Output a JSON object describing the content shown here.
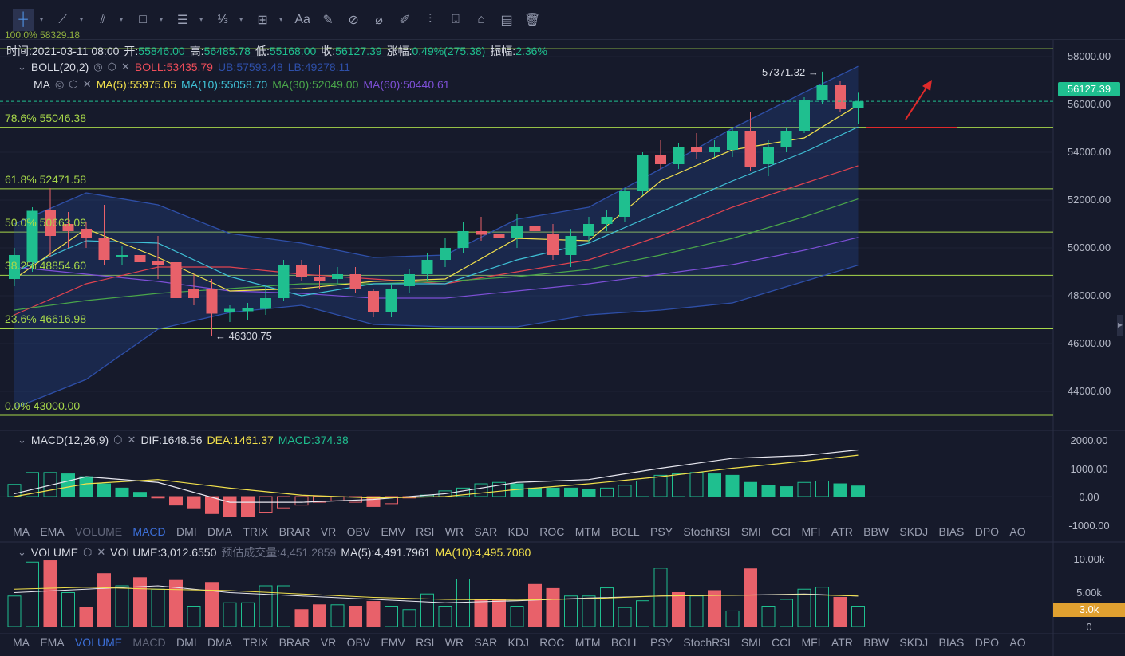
{
  "toolbar": {
    "tools": [
      {
        "name": "crosshair",
        "glyph": "┼",
        "caret": true,
        "active": true
      },
      {
        "name": "trend-line",
        "glyph": "⟋",
        "caret": true
      },
      {
        "name": "parallel-line",
        "glyph": "⫽",
        "caret": true
      },
      {
        "name": "rectangle",
        "glyph": "□",
        "caret": true
      },
      {
        "name": "fib-lines",
        "glyph": "☰",
        "caret": true
      },
      {
        "name": "fraction",
        "glyph": "⅓",
        "caret": true
      },
      {
        "name": "measure",
        "glyph": "⊞",
        "caret": true
      },
      {
        "name": "text",
        "glyph": "Aa"
      },
      {
        "name": "eraser",
        "glyph": "✎"
      },
      {
        "name": "link",
        "glyph": "⊘"
      },
      {
        "name": "ruler",
        "glyph": "⌀"
      },
      {
        "name": "brush",
        "glyph": "✐"
      },
      {
        "name": "candles",
        "glyph": "⫶"
      },
      {
        "name": "lock",
        "glyph": "⍗"
      },
      {
        "name": "bookmark",
        "glyph": "⌂"
      },
      {
        "name": "notes",
        "glyph": "▤"
      },
      {
        "name": "trash",
        "glyph": "🗑"
      }
    ]
  },
  "header": {
    "fib_top": "100.0% 58329.18",
    "time_label": "时间:",
    "time": "2021-03-11 08:00",
    "open_label": "开:",
    "open": "55846.00",
    "high_label": "高:",
    "high": "56485.78",
    "low_label": "低:",
    "low": "55168.00",
    "close_label": "收:",
    "close": "56127.39",
    "change_label": "涨幅:",
    "change": "0.49%(275.38)",
    "amp_label": "振幅:",
    "amp": "2.36%"
  },
  "boll": {
    "name": "BOLL(20,2)",
    "mid": "BOLL:53435.79",
    "ub": "UB:57593.48",
    "lb": "LB:49278.11"
  },
  "ma": {
    "name": "MA",
    "ma5": "MA(5):55975.05",
    "ma10": "MA(10):55058.70",
    "ma30": "MA(30):52049.00",
    "ma60": "MA(60):50440.61"
  },
  "fib_levels": [
    {
      "label": "78.6% 55046.38",
      "price": 55046.38
    },
    {
      "label": "61.8% 52471.58",
      "price": 52471.58
    },
    {
      "label": "50.0% 50663.09",
      "price": 50663.09
    },
    {
      "label": "38.2% 48854.60",
      "price": 48854.6
    },
    {
      "label": "23.6% 46616.98",
      "price": 46616.98
    },
    {
      "label": "0.0% 43000.00",
      "price": 43000
    }
  ],
  "fib_top_price": 58329.18,
  "price_axis": [
    "58000.00",
    "56000.00",
    "54000.00",
    "52000.00",
    "50000.00",
    "48000.00",
    "46000.00",
    "44000.00"
  ],
  "current_price": "56127.39",
  "annotations": {
    "high": "57371.32 →",
    "low": "← 46300.75"
  },
  "macd": {
    "name": "MACD(12,26,9)",
    "dif": "DIF:1648.56",
    "dea": "DEA:1461.37",
    "macd": "MACD:374.38",
    "axis": [
      "2000.00",
      "1000.00",
      "0.00",
      "-1000.00"
    ]
  },
  "volume": {
    "name": "VOLUME",
    "value": "VOLUME:3,012.6550",
    "est": "预估成交量:4,451.2859",
    "ma5": "MA(5):4,491.7961",
    "ma10": "MA(10):4,495.7080",
    "axis": [
      "10.00k",
      "5.00k",
      "0"
    ],
    "current": "3.0k"
  },
  "indicator_tabs": [
    "MA",
    "EMA",
    "VOLUME",
    "MACD",
    "DMI",
    "DMA",
    "TRIX",
    "BRAR",
    "VR",
    "OBV",
    "EMV",
    "RSI",
    "WR",
    "SAR",
    "KDJ",
    "ROC",
    "MTM",
    "BOLL",
    "PSY",
    "StochRSI",
    "SMI",
    "CCI",
    "MFI",
    "ATR",
    "BBW",
    "SKDJ",
    "BIAS",
    "DPO",
    "AO"
  ],
  "colors": {
    "up": "#1fbf8f",
    "down": "#e8616a",
    "ma5": "#f2e14c",
    "ma10": "#3fc1d6",
    "ma30": "#4aa64a",
    "ma60": "#7d4fd6",
    "boll": "#e0434f",
    "band": "#2e4fa8",
    "fib": "#a8d84a"
  },
  "chart_data": {
    "type": "candlestick",
    "ohlc": [
      [
        48700,
        50000,
        48400,
        49700
      ],
      [
        49400,
        51700,
        49000,
        51550
      ],
      [
        51600,
        52500,
        49600,
        50500
      ],
      [
        51000,
        51500,
        50000,
        50700
      ],
      [
        50800,
        51100,
        50000,
        50400
      ],
      [
        50400,
        51800,
        49300,
        49500
      ],
      [
        49600,
        50100,
        49300,
        49700
      ],
      [
        49700,
        50700,
        48600,
        49400
      ],
      [
        49450,
        50500,
        48700,
        49300
      ],
      [
        49400,
        50300,
        47700,
        47900
      ],
      [
        48300,
        48900,
        47600,
        47900
      ],
      [
        48300,
        48700,
        46300.75,
        47250
      ],
      [
        47300,
        47600,
        46900,
        47450
      ],
      [
        47350,
        47700,
        47000,
        47500
      ],
      [
        47450,
        48400,
        47200,
        47900
      ],
      [
        47900,
        49500,
        47800,
        49300
      ],
      [
        49300,
        49500,
        48600,
        48800
      ],
      [
        48800,
        49300,
        48300,
        48600
      ],
      [
        48700,
        49200,
        48500,
        48900
      ],
      [
        48900,
        49200,
        48100,
        48300
      ],
      [
        48200,
        48300,
        47100,
        47300
      ],
      [
        47300,
        48500,
        47100,
        48300
      ],
      [
        48400,
        49100,
        48100,
        48900
      ],
      [
        48900,
        49800,
        48600,
        49500
      ],
      [
        49500,
        50400,
        49200,
        50000
      ],
      [
        50000,
        51100,
        49800,
        50700
      ],
      [
        50700,
        51300,
        50300,
        50550
      ],
      [
        50600,
        51000,
        50100,
        50400
      ],
      [
        50400,
        51400,
        50000,
        50900
      ],
      [
        50900,
        51900,
        50300,
        50700
      ],
      [
        50600,
        51000,
        49500,
        49700
      ],
      [
        49700,
        50800,
        49200,
        50500
      ],
      [
        50500,
        51300,
        50200,
        51000
      ],
      [
        51000,
        51600,
        50700,
        51300
      ],
      [
        51300,
        52500,
        51100,
        52400
      ],
      [
        52400,
        54000,
        52200,
        53900
      ],
      [
        53900,
        54500,
        53300,
        53500
      ],
      [
        53500,
        54400,
        53300,
        54200
      ],
      [
        54200,
        54800,
        53700,
        54000
      ],
      [
        54000,
        54500,
        53800,
        54200
      ],
      [
        54100,
        55000,
        53800,
        54900
      ],
      [
        54900,
        55700,
        53200,
        53400
      ],
      [
        53500,
        54500,
        53000,
        54200
      ],
      [
        54200,
        55000,
        54000,
        54900
      ],
      [
        54900,
        56300,
        54800,
        56200
      ],
      [
        56200,
        57371.32,
        56000,
        56800
      ],
      [
        56800,
        57000,
        55700,
        55800
      ],
      [
        55846,
        56485.78,
        55168,
        56127.39
      ]
    ],
    "line_index": [
      0,
      4,
      8,
      12,
      16,
      20,
      24,
      28,
      32,
      36,
      40,
      44,
      47
    ],
    "lines": {
      "ma5": [
        48700,
        50800,
        49600,
        48200,
        48300,
        48600,
        48700,
        50400,
        50300,
        52800,
        54100,
        54600,
        55975
      ],
      "ma10": [
        49000,
        50300,
        50200,
        48800,
        48000,
        48500,
        48500,
        49500,
        50200,
        51500,
        52800,
        54000,
        55058
      ],
      "ma30": [
        47400,
        47800,
        48100,
        48300,
        48500,
        48500,
        48600,
        48800,
        49100,
        49700,
        50400,
        51300,
        52049
      ],
      "ma60": [
        49200,
        48900,
        48600,
        48200,
        48100,
        47900,
        47900,
        48200,
        48500,
        48900,
        49300,
        49900,
        50440
      ],
      "boll": [
        47200,
        48500,
        49200,
        49200,
        48900,
        48700,
        48500,
        49000,
        49500,
        50500,
        51700,
        52700,
        53435
      ],
      "ub": [
        51000,
        52300,
        51800,
        50600,
        50200,
        49600,
        49700,
        51200,
        51700,
        53300,
        55000,
        56500,
        57593
      ],
      "lb": [
        43300,
        44500,
        46600,
        47300,
        47600,
        46800,
        46700,
        46700,
        47200,
        47400,
        47700,
        48600,
        49278
      ]
    },
    "price_range": [
      42500,
      58600
    ],
    "macd_hist": [
      430,
      850,
      850,
      800,
      700,
      450,
      300,
      150,
      -50,
      -300,
      -400,
      -600,
      -700,
      -700,
      -550,
      -400,
      -300,
      -200,
      -150,
      -200,
      -350,
      -250,
      -50,
      50,
      200,
      300,
      450,
      500,
      450,
      300,
      300,
      300,
      250,
      300,
      400,
      550,
      750,
      800,
      850,
      800,
      750,
      500,
      400,
      350,
      500,
      550,
      450,
      374
    ],
    "macd_hollow": [
      1,
      1,
      1,
      0,
      0,
      0,
      0,
      0,
      0,
      0,
      0,
      0,
      0,
      0,
      1,
      1,
      1,
      1,
      1,
      1,
      0,
      1,
      1,
      1,
      1,
      1,
      1,
      1,
      0,
      0,
      0,
      0,
      0,
      1,
      1,
      1,
      1,
      1,
      1,
      0,
      0,
      0,
      0,
      0,
      1,
      1,
      0,
      0
    ],
    "dif": [
      100,
      700,
      500,
      -200,
      -200,
      -100,
      100,
      500,
      600,
      1000,
      1350,
      1450,
      1648
    ],
    "dea": [
      0,
      450,
      600,
      300,
      50,
      -50,
      0,
      250,
      450,
      700,
      1000,
      1250,
      1461
    ],
    "macd_range": [
      -1000,
      2000
    ],
    "vol": [
      4.5,
      9.5,
      9.7,
      5,
      2.8,
      7.8,
      6,
      7.2,
      5.5,
      6.8,
      3,
      6.5,
      3.5,
      3.5,
      6,
      6,
      2.5,
      3.2,
      3.2,
      3,
      3.7,
      3,
      2.5,
      4.8,
      3,
      7,
      4,
      4,
      3,
      6.2,
      5.6,
      4.5,
      4.5,
      5.7,
      2.8,
      3.8,
      8.6,
      5,
      4.5,
      5.3,
      2.3,
      8.5,
      3,
      4,
      5.5,
      5.8,
      4.3,
      3
    ],
    "vol_down": [
      0,
      0,
      1,
      0,
      1,
      1,
      0,
      1,
      0,
      1,
      0,
      1,
      0,
      0,
      0,
      0,
      1,
      1,
      0,
      1,
      1,
      0,
      0,
      0,
      0,
      0,
      1,
      1,
      0,
      1,
      1,
      0,
      0,
      0,
      0,
      0,
      0,
      1,
      0,
      1,
      0,
      1,
      0,
      0,
      0,
      0,
      1,
      0
    ],
    "vol_ma5": [
      5,
      5.5,
      6,
      5,
      4.5,
      4,
      3.5,
      3.8,
      4.2,
      4.5,
      4.6,
      4.8,
      4.49
    ],
    "vol_ma10": [
      5.5,
      5.8,
      5.5,
      5.3,
      4.8,
      4.3,
      4,
      3.9,
      4.1,
      4.5,
      4.6,
      4.7,
      4.5
    ]
  }
}
